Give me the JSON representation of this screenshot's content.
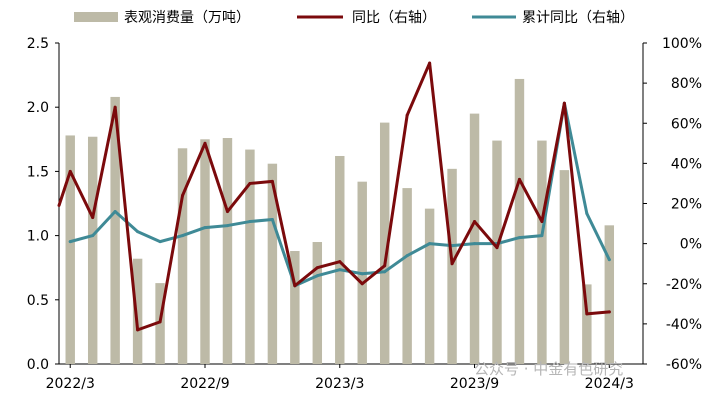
{
  "chart_data": {
    "type": "bar+line",
    "categories": [
      "2022/3",
      "2022/4",
      "2022/5",
      "2022/6",
      "2022/7",
      "2022/8",
      "2022/9",
      "2022/10",
      "2022/11",
      "2022/12",
      "2023/1",
      "2023/2",
      "2023/3",
      "2023/4",
      "2023/5",
      "2023/6",
      "2023/7",
      "2023/8",
      "2023/9",
      "2023/10",
      "2023/11",
      "2023/12",
      "2024/1",
      "2024/2",
      "2024/3",
      "2024/4"
    ],
    "x_tick_labels": [
      "2022/3",
      "2022/9",
      "2023/3",
      "2023/9",
      "2024/3"
    ],
    "x_tick_indices": [
      0,
      6,
      12,
      18,
      24
    ],
    "left_axis": {
      "min": 0,
      "max": 2.5,
      "ticks": [
        "0.0",
        "0.5",
        "1.0",
        "1.5",
        "2.0",
        "2.5"
      ]
    },
    "right_axis": {
      "min": -60,
      "max": 100,
      "ticks": [
        "-60%",
        "-40%",
        "-20%",
        "0%",
        "20%",
        "40%",
        "60%",
        "80%",
        "100%"
      ]
    },
    "series": [
      {
        "name": "表观消费量（万吨）",
        "kind": "bar",
        "axis": "left",
        "color": "#bdbaa7",
        "values": [
          1.78,
          1.77,
          2.08,
          0.82,
          0.63,
          1.68,
          1.75,
          1.76,
          1.67,
          1.56,
          0.88,
          0.95,
          1.62,
          1.42,
          1.88,
          1.37,
          1.21,
          1.52,
          1.95,
          1.74,
          2.22,
          1.74,
          1.51,
          0.62,
          1.08,
          null
        ]
      },
      {
        "name": "同比（右轴）",
        "kind": "line",
        "axis": "right",
        "color": "#7b0a0c",
        "values": [
          36,
          13,
          68,
          -43,
          -39,
          24,
          50,
          16,
          30,
          31,
          -21,
          -12,
          -9,
          -20,
          -11,
          64,
          90,
          -10,
          11,
          -2,
          32,
          11,
          70,
          -35,
          -34,
          null
        ],
        "lead_in_value": 19
      },
      {
        "name": "累计同比（右轴）",
        "kind": "line",
        "axis": "right",
        "color": "#3f8a96",
        "values": [
          1,
          4,
          16,
          6,
          1,
          4,
          8,
          9,
          11,
          12,
          -21,
          -16,
          -13,
          -15,
          -14,
          -6,
          0,
          -1,
          0,
          0,
          3,
          4,
          70,
          15,
          -8,
          null
        ]
      }
    ]
  },
  "watermark": "公众号 · 中金有色研究"
}
